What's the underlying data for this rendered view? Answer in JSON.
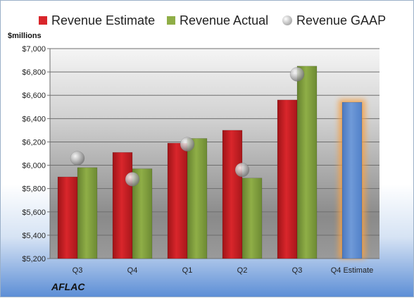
{
  "legend": {
    "estimate_label": "Revenue Estimate",
    "actual_label": "Revenue Actual",
    "gaap_label": "Revenue GAAP"
  },
  "unit_label": "$millions",
  "company_label": "AFLAC",
  "colors": {
    "estimate": "#d9262b",
    "actual": "#8fae47",
    "gaap": "#bfbfbf",
    "forecast": "#6f9ad8",
    "forecast_glow": "#f4a24a"
  },
  "chart_data": {
    "type": "bar",
    "categories": [
      "Q3",
      "Q4",
      "Q1",
      "Q2",
      "Q3",
      "Q4 Estimate"
    ],
    "ylim": [
      5200,
      7000
    ],
    "yticks": [
      5200,
      5400,
      5600,
      5800,
      6000,
      6200,
      6400,
      6600,
      6800,
      7000
    ],
    "ytick_labels": [
      "$5,200",
      "$5,400",
      "$5,600",
      "$5,800",
      "$6,000",
      "$6,200",
      "$6,400",
      "$6,600",
      "$6,800",
      "$7,000"
    ],
    "grid": true,
    "legend_position": "top",
    "series": [
      {
        "name": "Revenue Estimate",
        "values": [
          5900,
          6110,
          6190,
          6300,
          6560,
          null
        ]
      },
      {
        "name": "Revenue Actual",
        "values": [
          5980,
          5970,
          6230,
          5890,
          6850,
          null
        ]
      },
      {
        "name": "Revenue GAAP",
        "values": [
          6060,
          5880,
          6180,
          5960,
          6780,
          null
        ]
      }
    ],
    "forecast": {
      "category": "Q4 Estimate",
      "value": 6540
    }
  }
}
